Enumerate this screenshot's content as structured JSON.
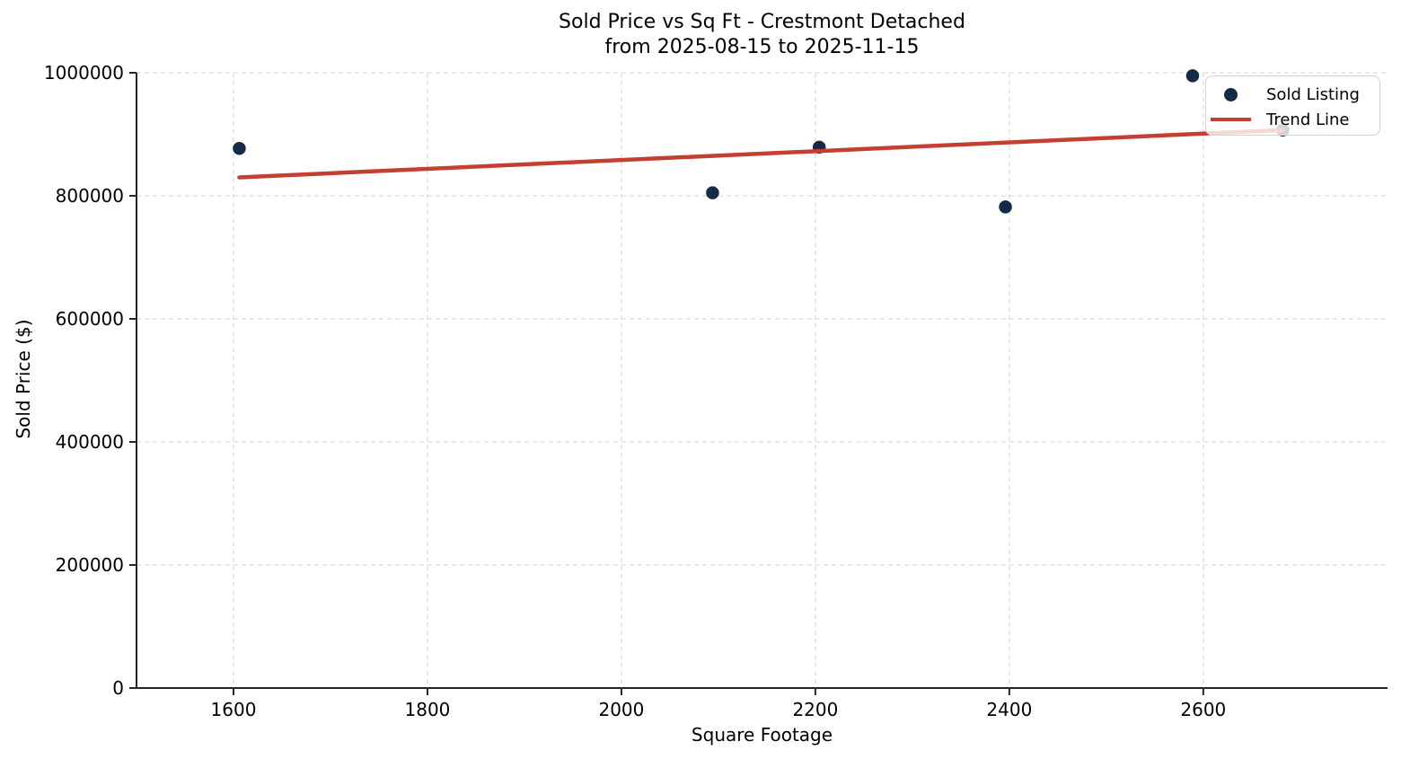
{
  "chart_data": {
    "type": "scatter",
    "title_line1": "Sold Price vs Sq Ft - Crestmont Detached",
    "title_line2": "from 2025-08-15 to 2025-11-15",
    "xlabel": "Square Footage",
    "ylabel": "Sold Price ($)",
    "xlim": [
      1500,
      2790
    ],
    "ylim": [
      0,
      1000000
    ],
    "x_ticks": [
      1600,
      1800,
      2000,
      2200,
      2400,
      2600
    ],
    "y_ticks": [
      0,
      200000,
      400000,
      600000,
      800000,
      1000000
    ],
    "grid": true,
    "grid_color": "#d9d9d9",
    "spine_color": "#262626",
    "legend_position": "upper right",
    "series": [
      {
        "name": "Sold Listing",
        "kind": "scatter",
        "color": "#152a46",
        "marker_diameter": 14.5,
        "points": [
          {
            "sqft": 1606,
            "price": 877000
          },
          {
            "sqft": 2094,
            "price": 805000
          },
          {
            "sqft": 2204,
            "price": 879000
          },
          {
            "sqft": 2396,
            "price": 782000
          },
          {
            "sqft": 2589,
            "price": 995000
          },
          {
            "sqft": 2682,
            "price": 907000
          }
        ]
      },
      {
        "name": "Trend Line",
        "kind": "line",
        "color": "#c43e32",
        "line_width": 4.5,
        "points": [
          {
            "sqft": 1606,
            "price": 830000
          },
          {
            "sqft": 2682,
            "price": 907000
          }
        ]
      }
    ]
  }
}
